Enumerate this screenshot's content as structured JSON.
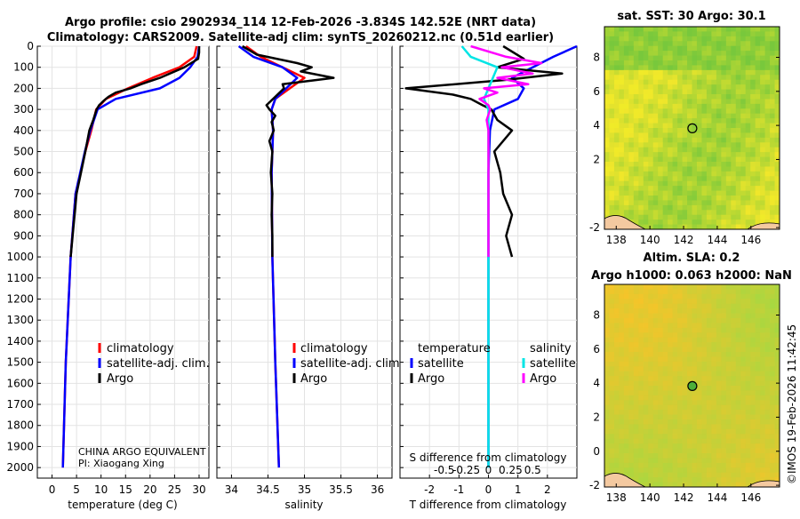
{
  "title_line1": "Argo profile: csio 2902934_114 12-Feb-2026 -3.834S 142.52E (NRT data)",
  "title_line2": "Climatology: CARS2009. Satellite-adj clim: synTS_20260212.nc (0.51d earlier)",
  "depth_ticks": [
    "0",
    "100",
    "200",
    "300",
    "400",
    "500",
    "600",
    "700",
    "800",
    "900",
    "1000",
    "1100",
    "1200",
    "1300",
    "1400",
    "1500",
    "1600",
    "1700",
    "1800",
    "1900",
    "2000"
  ],
  "colors": {
    "climatology": "#ff0000",
    "satellite": "#0000ff",
    "argo": "#000000",
    "sat_salinity": "#00e5e5",
    "argo_salinity": "#ff00ff",
    "land": "#f4c9a0"
  },
  "chart_data": [
    {
      "type": "line",
      "xlabel": "temperature (deg C)",
      "xticks": [
        "0",
        "5",
        "10",
        "15",
        "20",
        "25",
        "30"
      ],
      "xlim": [
        -3,
        32
      ],
      "ylim": [
        0,
        2050
      ],
      "legend": [
        "climatology",
        "satellite-adj. clim.",
        "Argo"
      ],
      "annotation": [
        "CHINA ARGO EQUIVALENT",
        "PI: Xiaogang Xing"
      ],
      "series": [
        {
          "name": "climatology",
          "depth": [
            0,
            50,
            100,
            150,
            200,
            250,
            300,
            400,
            500,
            700,
            1000,
            1500,
            2000
          ],
          "values": [
            29.5,
            29,
            26,
            20.5,
            15.5,
            11,
            9,
            8,
            6.8,
            4.8,
            3.8,
            2.8,
            2.2
          ]
        },
        {
          "name": "satellite-adj. clim.",
          "depth": [
            0,
            50,
            100,
            150,
            200,
            250,
            300,
            400,
            500,
            700,
            1000,
            1500,
            2000
          ],
          "values": [
            30,
            29.7,
            28.2,
            26,
            22,
            13,
            9.3,
            7.8,
            6.7,
            4.8,
            3.8,
            2.8,
            2.2
          ]
        },
        {
          "name": "Argo",
          "depth": [
            0,
            30,
            60,
            100,
            150,
            180,
            200,
            220,
            240,
            260,
            280,
            300,
            350,
            400,
            500,
            600,
            700,
            800,
            900,
            1000
          ],
          "values": [
            30,
            30,
            29.8,
            27,
            22,
            18.2,
            16,
            13,
            11.5,
            10.5,
            9.6,
            9.1,
            8.4,
            7.6,
            6.8,
            5.9,
            5,
            4.6,
            4.2,
            3.8
          ]
        }
      ]
    },
    {
      "type": "line",
      "xlabel": "salinity",
      "xticks": [
        "34",
        "34.5",
        "35",
        "35.5",
        "36"
      ],
      "xlim": [
        33.8,
        36.2
      ],
      "ylim": [
        0,
        2050
      ],
      "legend": [
        "climatology",
        "satellite-adj. clim.",
        "Argo"
      ],
      "series": [
        {
          "name": "climatology",
          "depth": [
            0,
            50,
            100,
            150,
            200,
            250,
            300,
            400,
            500,
            600,
            1000,
            1500,
            2000
          ],
          "values": [
            34.2,
            34.4,
            34.7,
            35.0,
            34.8,
            34.6,
            34.55,
            34.57,
            34.56,
            34.55,
            34.56,
            34.6,
            34.65
          ]
        },
        {
          "name": "satellite-adj. clim.",
          "depth": [
            0,
            50,
            100,
            150,
            200,
            250,
            300,
            400,
            500,
            600,
            1000,
            1500,
            2000
          ],
          "values": [
            34.1,
            34.3,
            34.7,
            34.9,
            34.75,
            34.6,
            34.55,
            34.57,
            34.56,
            34.55,
            34.56,
            34.6,
            34.65
          ]
        },
        {
          "name": "Argo",
          "depth": [
            0,
            40,
            80,
            100,
            120,
            150,
            180,
            200,
            240,
            280,
            300,
            330,
            360,
            400,
            450,
            500,
            600,
            700,
            800,
            900,
            1000
          ],
          "values": [
            34.15,
            34.35,
            34.9,
            35.1,
            34.95,
            35.4,
            34.7,
            34.72,
            34.6,
            34.48,
            34.52,
            34.6,
            34.55,
            34.58,
            34.52,
            34.56,
            34.54,
            34.56,
            34.55,
            34.56,
            34.56
          ]
        }
      ]
    },
    {
      "type": "line",
      "xlabel": "T difference from climatology",
      "xlabel2": "S difference from climatology",
      "xticks": [
        "-2",
        "-1",
        "0",
        "1",
        "2"
      ],
      "xticks2": [
        "-0.5",
        "-0.25",
        "0",
        "0.25",
        "0.5"
      ],
      "xlim": [
        -3,
        3
      ],
      "ylim": [
        0,
        2050
      ],
      "legend_temperature_title": "temperature",
      "legend_salinity_title": "salinity",
      "legend": [
        "satellite",
        "Argo",
        "satellite",
        "Argo"
      ],
      "series": [
        {
          "name": "temperature satellite",
          "depth": [
            0,
            50,
            100,
            150,
            200,
            250,
            300,
            400,
            600,
            1000,
            1500,
            2000
          ],
          "values": [
            3,
            2.2,
            1.5,
            0.8,
            1.2,
            1.0,
            0.2,
            0.05,
            0,
            0,
            0,
            0
          ]
        },
        {
          "name": "temperature Argo",
          "depth": [
            0,
            60,
            100,
            130,
            160,
            200,
            230,
            250,
            280,
            300,
            350,
            400,
            500,
            600,
            700,
            800,
            900,
            1000
          ],
          "values": [
            0.5,
            1.2,
            0.3,
            2.5,
            0.6,
            -2.8,
            -1.2,
            -0.6,
            -0.2,
            0.1,
            0.3,
            0.8,
            0.2,
            0.4,
            0.5,
            0.8,
            0.6,
            0.8
          ]
        },
        {
          "name": "salinity satellite",
          "depth": [
            0,
            50,
            100,
            150,
            200,
            250,
            300,
            500,
            1000,
            1500,
            2000
          ],
          "values": [
            -0.3,
            -0.2,
            0.1,
            0.05,
            0.0,
            -0.05,
            0.0,
            0.0,
            0.0,
            0.0,
            0.0
          ]
        },
        {
          "name": "salinity Argo",
          "depth": [
            0,
            50,
            80,
            100,
            130,
            150,
            180,
            200,
            220,
            250,
            280,
            300,
            350,
            400,
            500,
            600,
            700,
            800,
            900,
            1000
          ],
          "values": [
            -0.2,
            0.2,
            0.6,
            0.15,
            0.5,
            0.1,
            0.45,
            -0.05,
            0.1,
            -0.1,
            0.0,
            0.02,
            -0.02,
            0.0,
            0.0,
            0.0,
            0.0,
            0.0,
            0.0,
            0.0
          ]
        }
      ]
    },
    {
      "type": "heatmap",
      "title": "sat. SST: 30 Argo: 30.1",
      "xticks": [
        "138",
        "140",
        "142",
        "144",
        "146"
      ],
      "yticks": [
        "8",
        "6",
        "4",
        "2",
        "-2"
      ],
      "xlim": [
        137.3,
        147.7
      ],
      "ylim": [
        -2.1,
        9.8
      ],
      "marker": {
        "lon": 142.52,
        "lat": 3.83
      }
    },
    {
      "type": "heatmap",
      "title": "Altim. SLA: 0.2",
      "title2": "Argo h1000: 0.063 h2000: NaN",
      "xticks": [
        "138",
        "140",
        "142",
        "144",
        "146"
      ],
      "yticks": [
        "8",
        "6",
        "4",
        "2",
        "0",
        "-2"
      ],
      "xlim": [
        137.3,
        147.7
      ],
      "ylim": [
        -2.1,
        9.8
      ],
      "marker": {
        "lon": 142.52,
        "lat": 3.83
      }
    }
  ],
  "footer_stamp": "©IMOS 19-Feb-2026 11:42:45"
}
